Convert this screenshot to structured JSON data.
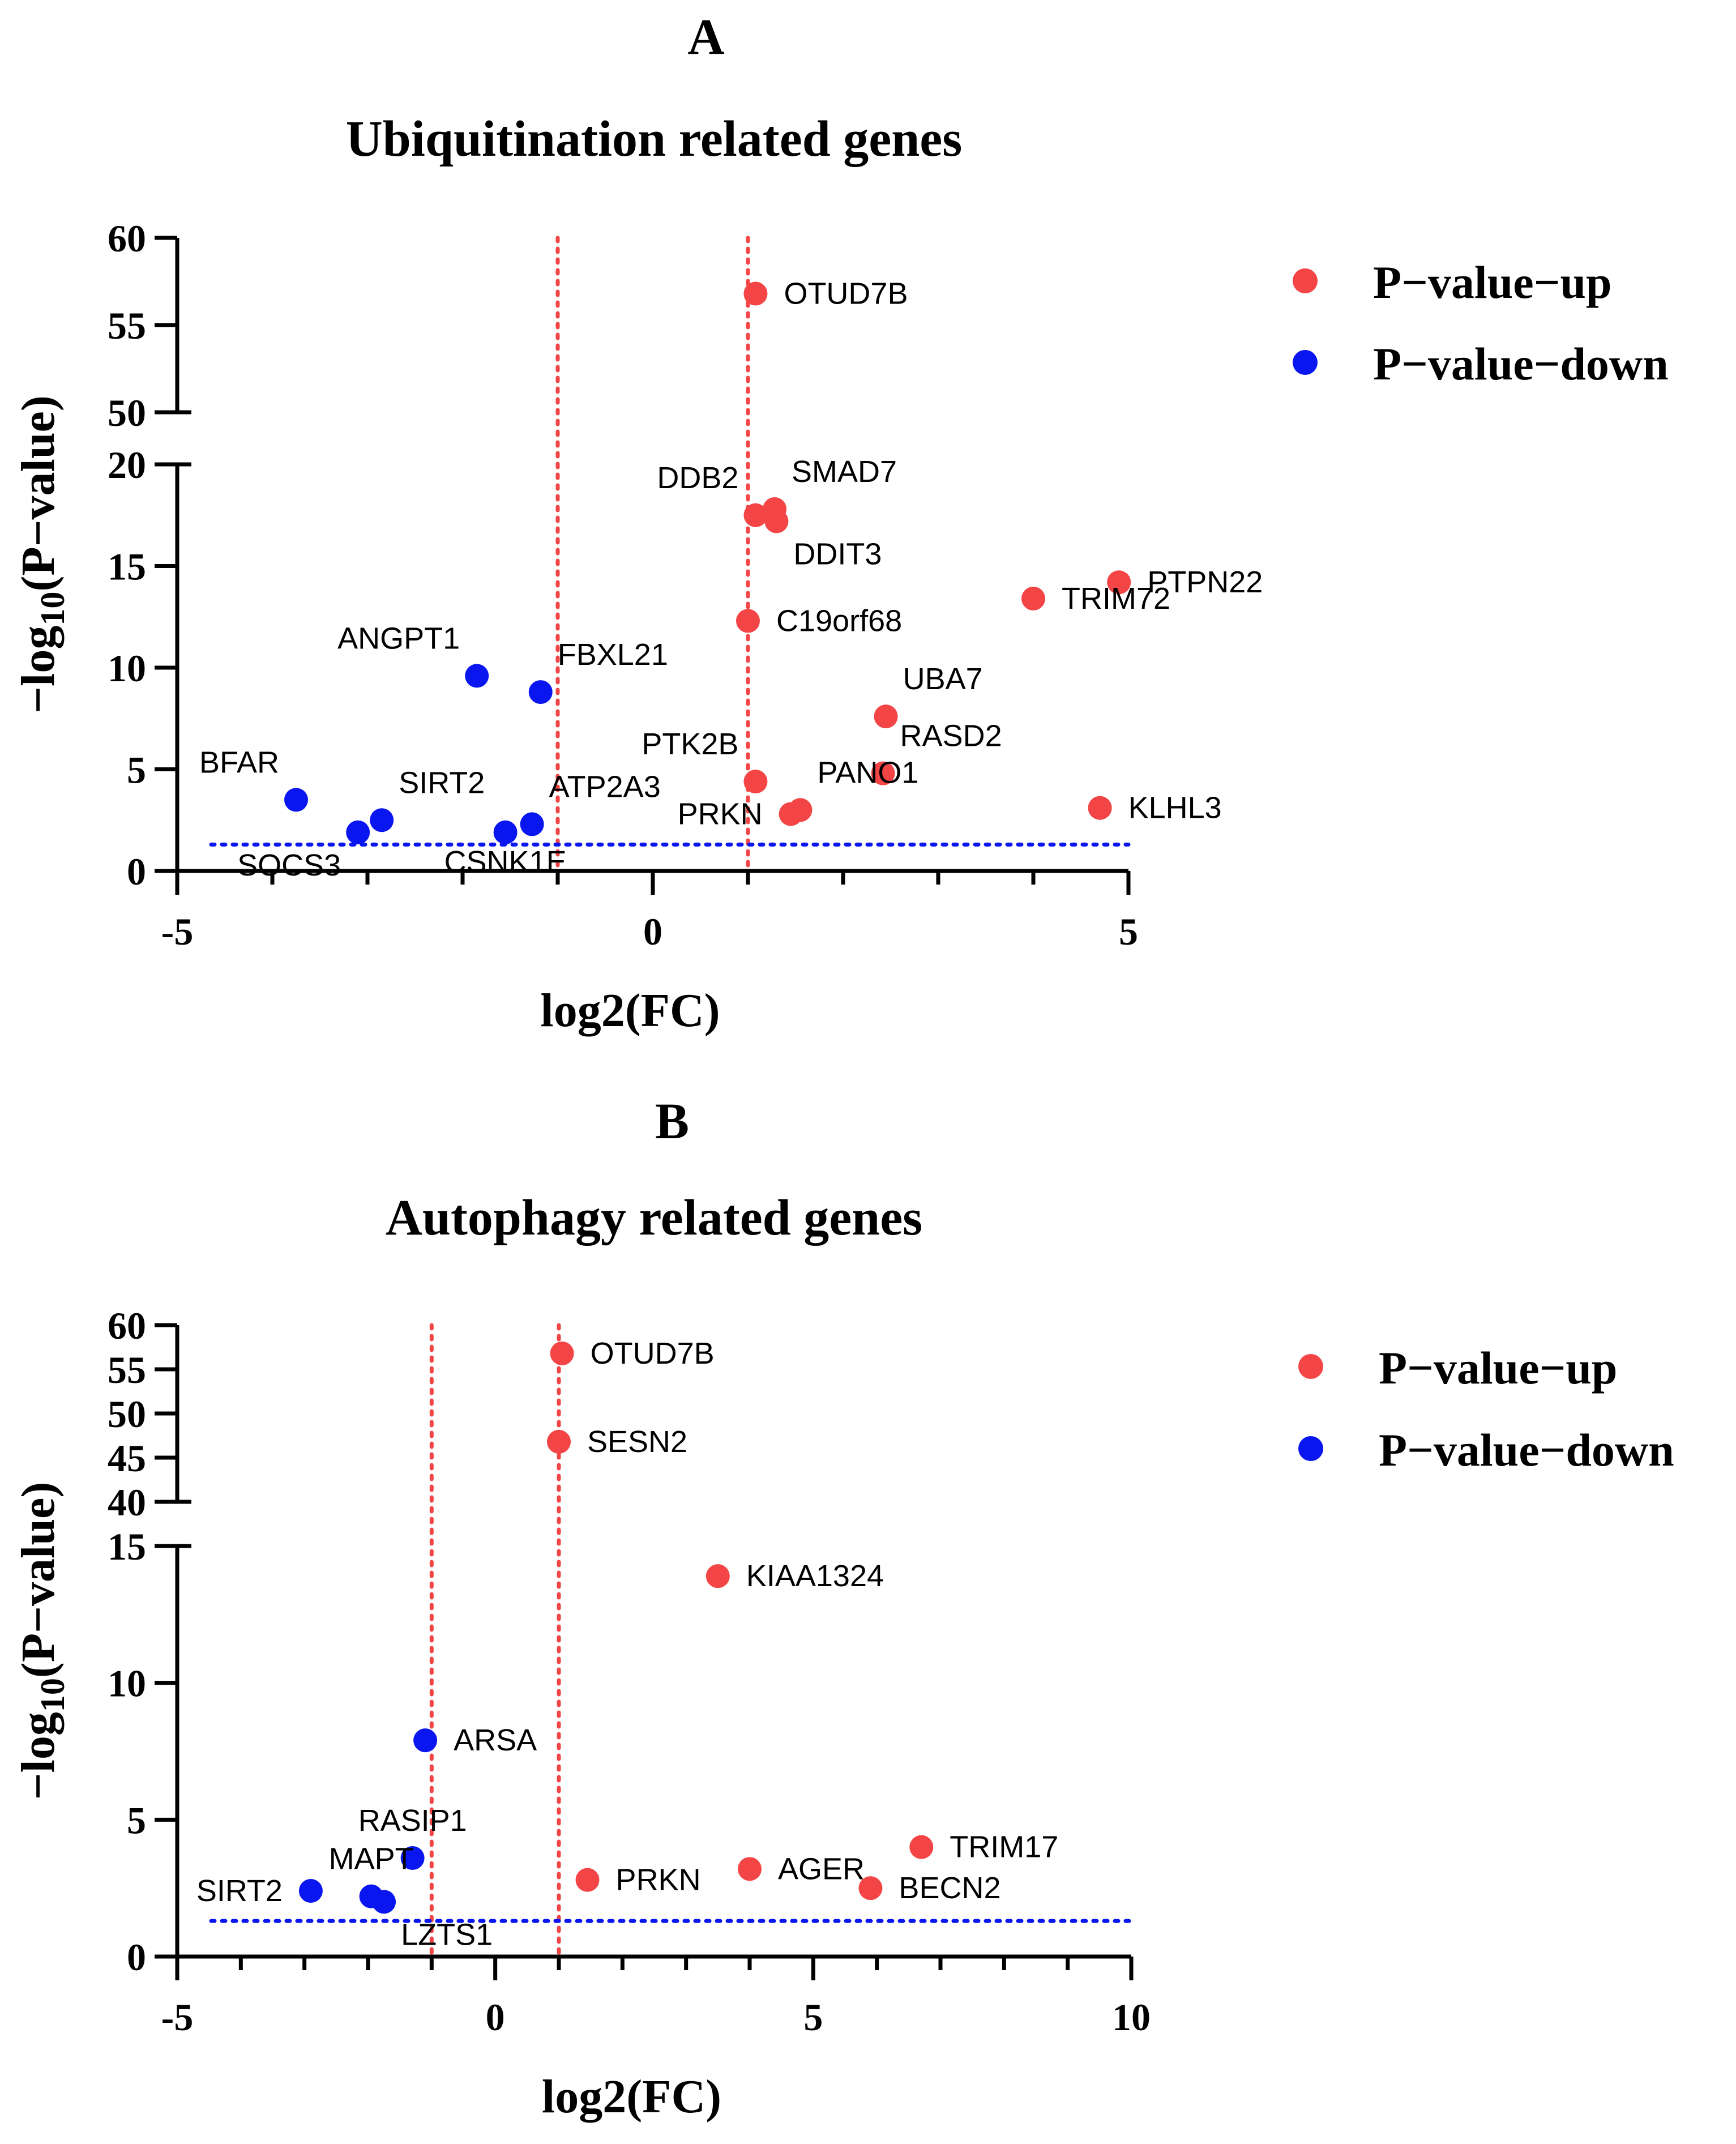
{
  "chart_data": [
    {
      "type": "scatter",
      "panel": "A",
      "title": "Ubiquitination related genes",
      "xlabel": "log2(FC)",
      "ylabel": {
        "prefix": "−log",
        "sub": "10",
        "suffix": "(P−value)"
      },
      "xlim": [
        -5,
        5
      ],
      "x_ticks": [
        -5,
        0,
        5
      ],
      "y_segments": [
        {
          "range": [
            0,
            20
          ],
          "ticks": [
            0,
            5,
            10,
            15,
            20
          ]
        },
        {
          "range": [
            50,
            60
          ],
          "ticks": [
            50,
            55,
            60
          ]
        }
      ],
      "vlines": [
        -1,
        1
      ],
      "hline": 1.3,
      "legend": [
        {
          "label": "P−value−up",
          "color": "#f34545"
        },
        {
          "label": "P−value−down",
          "color": "#0a16f0"
        }
      ],
      "points": [
        {
          "gene": "OTUD7B",
          "x": 1.08,
          "y": 56.8,
          "group": "up",
          "label_side": "right"
        },
        {
          "gene": "SMAD7",
          "x": 1.28,
          "y": 17.8,
          "group": "up",
          "label_side": "upper-right"
        },
        {
          "gene": "DDB2",
          "x": 1.08,
          "y": 17.5,
          "group": "up",
          "label_side": "upper-left"
        },
        {
          "gene": "DDIT3",
          "x": 1.3,
          "y": 17.2,
          "group": "up",
          "label_side": "lower-right"
        },
        {
          "gene": "PTPN22",
          "x": 4.9,
          "y": 14.2,
          "group": "up",
          "label_side": "right"
        },
        {
          "gene": "TRIM72",
          "x": 4.0,
          "y": 13.4,
          "group": "up",
          "label_side": "right"
        },
        {
          "gene": "C19orf68",
          "x": 1.0,
          "y": 12.3,
          "group": "up",
          "label_side": "right"
        },
        {
          "gene": "UBA7",
          "x": 2.45,
          "y": 7.6,
          "group": "up",
          "label_side": "upper-right"
        },
        {
          "gene": "RASD2",
          "x": 2.42,
          "y": 4.8,
          "group": "up",
          "label_side": "upper-right"
        },
        {
          "gene": "PTK2B",
          "x": 1.08,
          "y": 4.4,
          "group": "up",
          "label_side": "upper-left"
        },
        {
          "gene": "PANO1",
          "x": 1.55,
          "y": 3.0,
          "group": "up",
          "label_side": "upper-right"
        },
        {
          "gene": "PRKN",
          "x": 1.45,
          "y": 2.8,
          "group": "up",
          "label_side": "left"
        },
        {
          "gene": "KLHL3",
          "x": 4.7,
          "y": 3.1,
          "group": "up",
          "label_side": "right"
        },
        {
          "gene": "ANGPT1",
          "x": -1.85,
          "y": 9.6,
          "group": "down",
          "label_side": "upper-left"
        },
        {
          "gene": "FBXL21",
          "x": -1.18,
          "y": 8.8,
          "group": "down",
          "label_side": "upper-right"
        },
        {
          "gene": "BFAR",
          "x": -3.75,
          "y": 3.5,
          "group": "down",
          "label_side": "upper-left"
        },
        {
          "gene": "SIRT2",
          "x": -2.85,
          "y": 2.5,
          "group": "down",
          "label_side": "upper-right"
        },
        {
          "gene": "SOCS3",
          "x": -3.1,
          "y": 1.9,
          "group": "down",
          "label_side": "lower-left"
        },
        {
          "gene": "ATP2A3",
          "x": -1.27,
          "y": 2.3,
          "group": "down",
          "label_side": "upper-right"
        },
        {
          "gene": "CSNK1E",
          "x": -1.55,
          "y": 1.9,
          "group": "down",
          "label_side": "lower"
        }
      ]
    },
    {
      "type": "scatter",
      "panel": "B",
      "title": "Autophagy related genes",
      "xlabel": "log2(FC)",
      "ylabel": {
        "prefix": "−log",
        "sub": "10",
        "suffix": "(P−value)"
      },
      "xlim": [
        -5,
        10
      ],
      "x_ticks": [
        -5,
        0,
        5,
        10
      ],
      "y_segments": [
        {
          "range": [
            0,
            15
          ],
          "ticks": [
            0,
            5,
            10,
            15
          ]
        },
        {
          "range": [
            40,
            60
          ],
          "ticks": [
            40,
            45,
            50,
            55,
            60
          ]
        }
      ],
      "vlines": [
        -1,
        1
      ],
      "hline": 1.3,
      "legend": [
        {
          "label": "P−value−up",
          "color": "#f34545"
        },
        {
          "label": "P−value−down",
          "color": "#0a16f0"
        }
      ],
      "points": [
        {
          "gene": "OTUD7B",
          "x": 1.05,
          "y": 56.8,
          "group": "up",
          "label_side": "right"
        },
        {
          "gene": "SESN2",
          "x": 1.0,
          "y": 46.8,
          "group": "up",
          "label_side": "right"
        },
        {
          "gene": "KIAA1324",
          "x": 3.5,
          "y": 13.9,
          "group": "up",
          "label_side": "right"
        },
        {
          "gene": "TRIM17",
          "x": 6.7,
          "y": 4.0,
          "group": "up",
          "label_side": "right"
        },
        {
          "gene": "AGER",
          "x": 4.0,
          "y": 3.2,
          "group": "up",
          "label_side": "right"
        },
        {
          "gene": "PRKN",
          "x": 1.45,
          "y": 2.8,
          "group": "up",
          "label_side": "right"
        },
        {
          "gene": "BECN2",
          "x": 5.9,
          "y": 2.5,
          "group": "up",
          "label_side": "right"
        },
        {
          "gene": "ARSA",
          "x": -1.1,
          "y": 7.9,
          "group": "down",
          "label_side": "right"
        },
        {
          "gene": "RASIP1",
          "x": -1.3,
          "y": 3.6,
          "group": "down",
          "label_side": "upper"
        },
        {
          "gene": "SIRT2",
          "x": -2.9,
          "y": 2.4,
          "group": "down",
          "label_side": "left"
        },
        {
          "gene": "MAPT",
          "x": -1.95,
          "y": 2.2,
          "group": "down",
          "label_side": "upper"
        },
        {
          "gene": "LZTS1",
          "x": -1.75,
          "y": 2.0,
          "group": "down",
          "label_side": "lower-right"
        }
      ]
    }
  ]
}
